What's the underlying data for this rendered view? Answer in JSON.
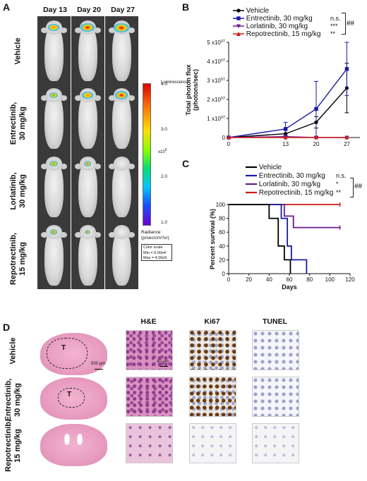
{
  "panels": {
    "a": "A",
    "b": "B",
    "c": "C",
    "d": "D"
  },
  "panel_a": {
    "days": [
      "Day 13",
      "Day 20",
      "Day 27"
    ],
    "rows": [
      "Vehicle",
      "Entrectinib,\n30 mg/kg",
      "Lorlatinib,\n30 mg/kg",
      "Repotrectinib,\n15 mg/kg"
    ],
    "colorbar": {
      "title": "Luminescence",
      "top": "4.0",
      "mid3": "3.0",
      "mid2": "2.0",
      "bottom": "1.0",
      "exp": "x10",
      "exp_power": "5",
      "radiance_label": "Radiance\n(p/sec/cm²/sr)",
      "scale_title": "Color scale",
      "scale_min": "Min = 9.00e4",
      "scale_max": "Max = 4.00e5"
    },
    "tumor_signal_levels": [
      [
        0.6,
        0.9,
        1.0
      ],
      [
        0.4,
        0.6,
        0.8
      ],
      [
        0.4,
        0.3,
        0.0
      ],
      [
        0.3,
        0.1,
        0.0
      ]
    ]
  },
  "panel_b_legend": [
    {
      "label": "Vehicle",
      "color": "#000000",
      "marker": "circle",
      "sig": ""
    },
    {
      "label": "Entrectinib, 30 mg/kg",
      "color": "#1a1aa6",
      "marker": "square",
      "sig": "n.s."
    },
    {
      "label": "Lorlatinib, 30 mg/kg",
      "color": "#6a1a8a",
      "marker": "triangle-down",
      "sig": "***"
    },
    {
      "label": "Repotrectinib, 15 mg/kg",
      "color": "#d11a1a",
      "marker": "triangle-up",
      "sig": "**"
    }
  ],
  "panel_b_bracket_sig": "##",
  "panel_c_legend": [
    {
      "label": "Vehicle",
      "color": "#000000",
      "sig": ""
    },
    {
      "label": "Entrectinib, 30 mg/kg",
      "color": "#1a1aa6",
      "sig": "n.s."
    },
    {
      "label": "Lorlatinib, 30 mg/kg",
      "color": "#6a1a8a",
      "sig": "*"
    },
    {
      "label": "Repotrectinib, 15 mg/kg",
      "color": "#d11a1a",
      "sig": "**"
    }
  ],
  "panel_c_bracket_sig": "##",
  "panel_d": {
    "col_headers": [
      "H&E",
      "Ki67",
      "TUNEL"
    ],
    "rows": [
      "Vehicle",
      "Entrectinib,\n30 mg/kg",
      "Repotrectinib,\n15 mg/kg"
    ],
    "scale_whole": "500 μm",
    "scale_zoom": "40 μm",
    "tumor_label": "T"
  },
  "chart_data": [
    {
      "type": "line",
      "panel": "B",
      "xlabel": "Days",
      "ylabel": "Total photon flux\n(photons/sec)",
      "x": [
        0,
        13,
        20,
        27
      ],
      "xlim": [
        0,
        30
      ],
      "ylim": [
        0,
        50000000.0
      ],
      "yticks": [
        0,
        10000000.0,
        20000000.0,
        30000000.0,
        40000000.0,
        50000000.0
      ],
      "yticklabels": [
        "0",
        "1 x10^07",
        "2 x10^07",
        "3 x10^07",
        "4 x10^07",
        "5 x10^07"
      ],
      "series": [
        {
          "name": "Vehicle",
          "values": [
            0,
            2000000.0,
            8000000.0,
            26000000.0
          ],
          "err": [
            0,
            2000000.0,
            3000000.0,
            13000000.0
          ]
        },
        {
          "name": "Entrectinib, 30 mg/kg",
          "values": [
            0,
            4500000.0,
            15000000.0,
            36000000.0
          ],
          "err": [
            0,
            3500000.0,
            14500000.0,
            14000000.0
          ]
        },
        {
          "name": "Lorlatinib, 30 mg/kg",
          "values": [
            0,
            500000.0,
            0,
            0
          ],
          "err": [
            0,
            0,
            0,
            0
          ]
        },
        {
          "name": "Repotrectinib, 15 mg/kg",
          "values": [
            0,
            0,
            0,
            0
          ],
          "err": [
            0,
            0,
            0,
            0
          ]
        }
      ]
    },
    {
      "type": "line",
      "panel": "C",
      "xlabel": "Days",
      "ylabel": "Percent survival (%)",
      "xlim": [
        0,
        120
      ],
      "ylim": [
        0,
        100
      ],
      "xticks": [
        0,
        20,
        40,
        60,
        80,
        100,
        120
      ],
      "yticks": [
        0,
        20,
        40,
        60,
        80,
        100
      ],
      "series": [
        {
          "name": "Vehicle",
          "x": [
            0,
            40,
            40,
            49,
            49,
            55,
            55,
            57,
            57,
            61,
            61
          ],
          "y": [
            100,
            100,
            80,
            80,
            40,
            40,
            20,
            20,
            20,
            20,
            0
          ]
        },
        {
          "name": "Entrectinib, 30 mg/kg",
          "x": [
            0,
            52,
            52,
            58,
            58,
            62,
            62,
            77,
            77
          ],
          "y": [
            100,
            100,
            80,
            80,
            40,
            40,
            20,
            20,
            0
          ]
        },
        {
          "name": "Lorlatinib, 30 mg/kg",
          "x": [
            0,
            55,
            55,
            64,
            64,
            110
          ],
          "y": [
            100,
            100,
            83.3,
            83.3,
            66.7,
            66.7
          ]
        },
        {
          "name": "Repotrectinib, 15 mg/kg",
          "x": [
            0,
            110
          ],
          "y": [
            100,
            100
          ]
        }
      ]
    }
  ]
}
